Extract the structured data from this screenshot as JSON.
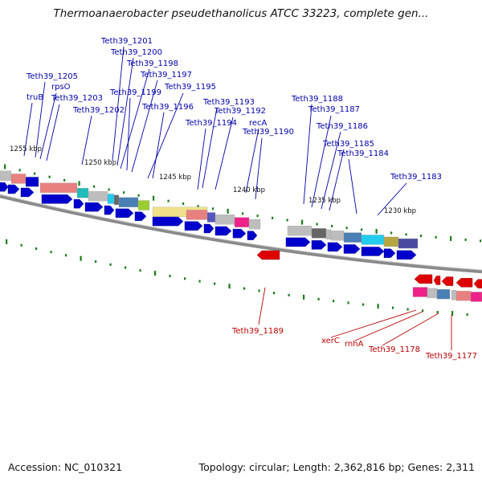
{
  "title": "Thermoanaerobacter pseudethanolicus ATCC 33223, complete gen...",
  "accession": "Accession: NC_010321",
  "topology": "Topology: circular; Length: 2,362,816 bp; Genes: 2,311",
  "colors": {
    "forward": "#0000cc",
    "reverse": "#dd0000",
    "forward_label": "#0000aa",
    "reverse_label": "#bb0000",
    "tick": "#1a7a1a",
    "backbone": "#8a8a8a"
  },
  "scale_labels": [
    "1255 kbp",
    "1250 kbp",
    "1245 kbp",
    "1240 kbp",
    "1235 kbp",
    "1230 kbp"
  ],
  "forward_labels": [
    "Teth39_1201",
    "Teth39_1200",
    "Teth39_1198",
    "Teth39_1197",
    "Teth39_1205",
    "rpsO",
    "Teth39_1199",
    "Teth39_1195",
    "truB",
    "Teth39_1203",
    "Teth39_1196",
    "Teth39_1202",
    "Teth39_1193",
    "Teth39_1192",
    "Teth39_1194",
    "recA",
    "Teth39_1190",
    "Teth39_1188",
    "Teth39_1187",
    "Teth39_1186",
    "Teth39_1185",
    "Teth39_1184",
    "Teth39_1183"
  ],
  "reverse_labels": [
    "Teth39_1189",
    "xerC",
    "rnhA",
    "Teth39_1178",
    "Teth39_1177"
  ]
}
